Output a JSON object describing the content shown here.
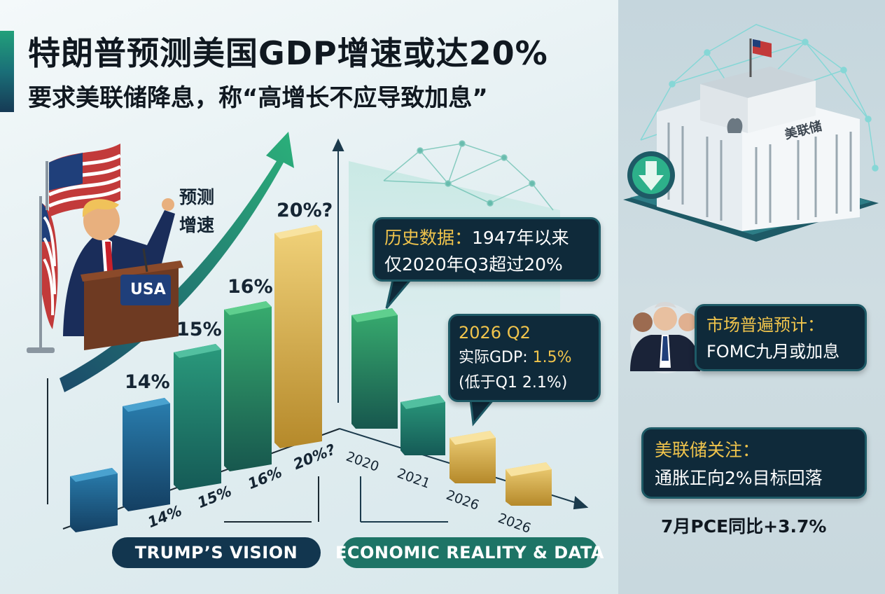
{
  "header": {
    "title": "特朗普预测美国GDP增速或达20%",
    "subtitle": "要求美联储降息，称“高增长不应导致加息”"
  },
  "trump_side": {
    "annotation": [
      "预测",
      "增速"
    ],
    "podium_label": "USA",
    "section_label": "TRUMP’S VISION",
    "chart_data": {
      "type": "bar",
      "categories": [
        "14%",
        "15%",
        "16%",
        "20%?"
      ],
      "values": [
        14,
        15,
        16,
        20
      ],
      "bar_labels": [
        "14%",
        "15%",
        "16%",
        "20%?"
      ],
      "title": "",
      "xlabel": "",
      "ylabel": ""
    }
  },
  "reality_side": {
    "section_label": "ECONOMIC REALITY & DATA",
    "chart_data": {
      "type": "bar",
      "categories": [
        "2020",
        "2021",
        "2026",
        "2026"
      ],
      "values": [
        20,
        8,
        2.1,
        1.5
      ],
      "title": "",
      "xlabel": "",
      "ylabel": ""
    },
    "history_callout": {
      "label": "历史数据：",
      "line1_rest": "1947年以来",
      "line2": "仅2020年Q3超过20%"
    },
    "q2_callout": {
      "title": "2026 Q2",
      "gdp_label": "实际GDP:",
      "gdp_value": "1.5%",
      "compare": "(低于Q1 2.1%)"
    }
  },
  "fed_side": {
    "building_label": "美联储",
    "market_callout": {
      "line1": "市场普遍预计：",
      "line2": "FOMC九月或加息"
    },
    "focus_callout": {
      "line1": "美联储关注：",
      "line2": "通胀正向2%目标回落"
    },
    "pce_note": "7月PCE同比+3.7%"
  },
  "colors": {
    "teal_bar": "#1f7a6a",
    "blue_bar": "#1d5d8a",
    "gold_bar": "#d6a93a",
    "arrow_green": "#24a070",
    "navy": "#0f2a3a",
    "accent_gold": "#f0c44c",
    "pill_navy": "#12364f",
    "pill_teal": "#1e7466"
  }
}
